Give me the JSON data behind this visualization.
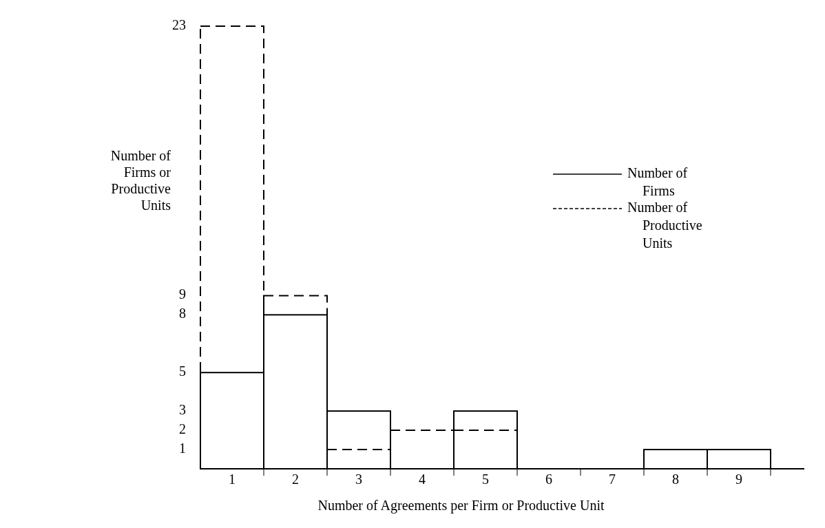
{
  "chart_data": {
    "type": "bar",
    "xlabel": "Number of Agreements per Firm or Productive Unit",
    "ylabel": "Number of Firms or Productive Units",
    "categories": [
      "1",
      "2",
      "3",
      "4",
      "5",
      "6",
      "7",
      "8",
      "9"
    ],
    "series": [
      {
        "name": "Number of Firms",
        "color": "#000000",
        "line_style": "solid",
        "values": [
          5,
          8,
          3,
          0,
          3,
          0,
          0,
          1,
          1
        ]
      },
      {
        "name": "Number of Productive Units",
        "color": "#000000",
        "line_style": "dashed",
        "values": [
          23,
          9,
          1,
          2,
          2,
          0,
          0,
          null,
          null
        ]
      }
    ],
    "ylim": [
      0,
      23
    ],
    "yticks": [
      1,
      2,
      3,
      5,
      8,
      9,
      23
    ],
    "grid": false,
    "legend": "right"
  }
}
